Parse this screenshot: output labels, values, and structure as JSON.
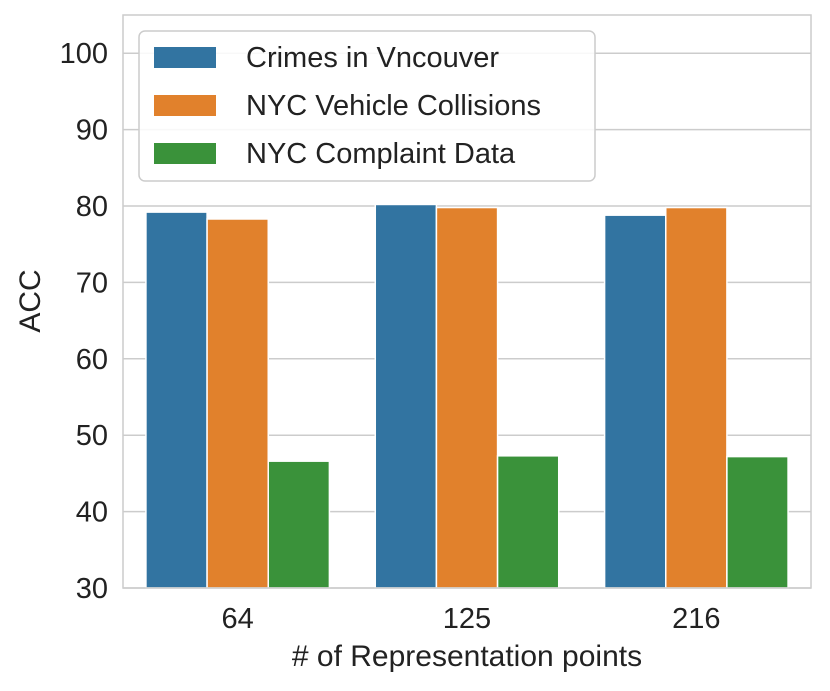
{
  "chart_data": {
    "type": "bar",
    "title": "",
    "xlabel": "# of Representation points",
    "ylabel": "ACC",
    "categories": [
      "64",
      "125",
      "216"
    ],
    "series": [
      {
        "name": "Crimes in Vncouver",
        "values": [
          79.2,
          80.2,
          78.8
        ],
        "color": "#3274a1"
      },
      {
        "name": "NYC Vehicle Collisions",
        "values": [
          78.3,
          79.8,
          79.8
        ],
        "color": "#e1812c"
      },
      {
        "name": "NYC Complaint Data",
        "values": [
          46.6,
          47.3,
          47.2
        ],
        "color": "#3a923a"
      }
    ],
    "ylim": [
      30,
      105
    ],
    "yticks": [
      30,
      40,
      50,
      60,
      70,
      80,
      90,
      100
    ],
    "grid": true,
    "legend_position": "top-left"
  }
}
